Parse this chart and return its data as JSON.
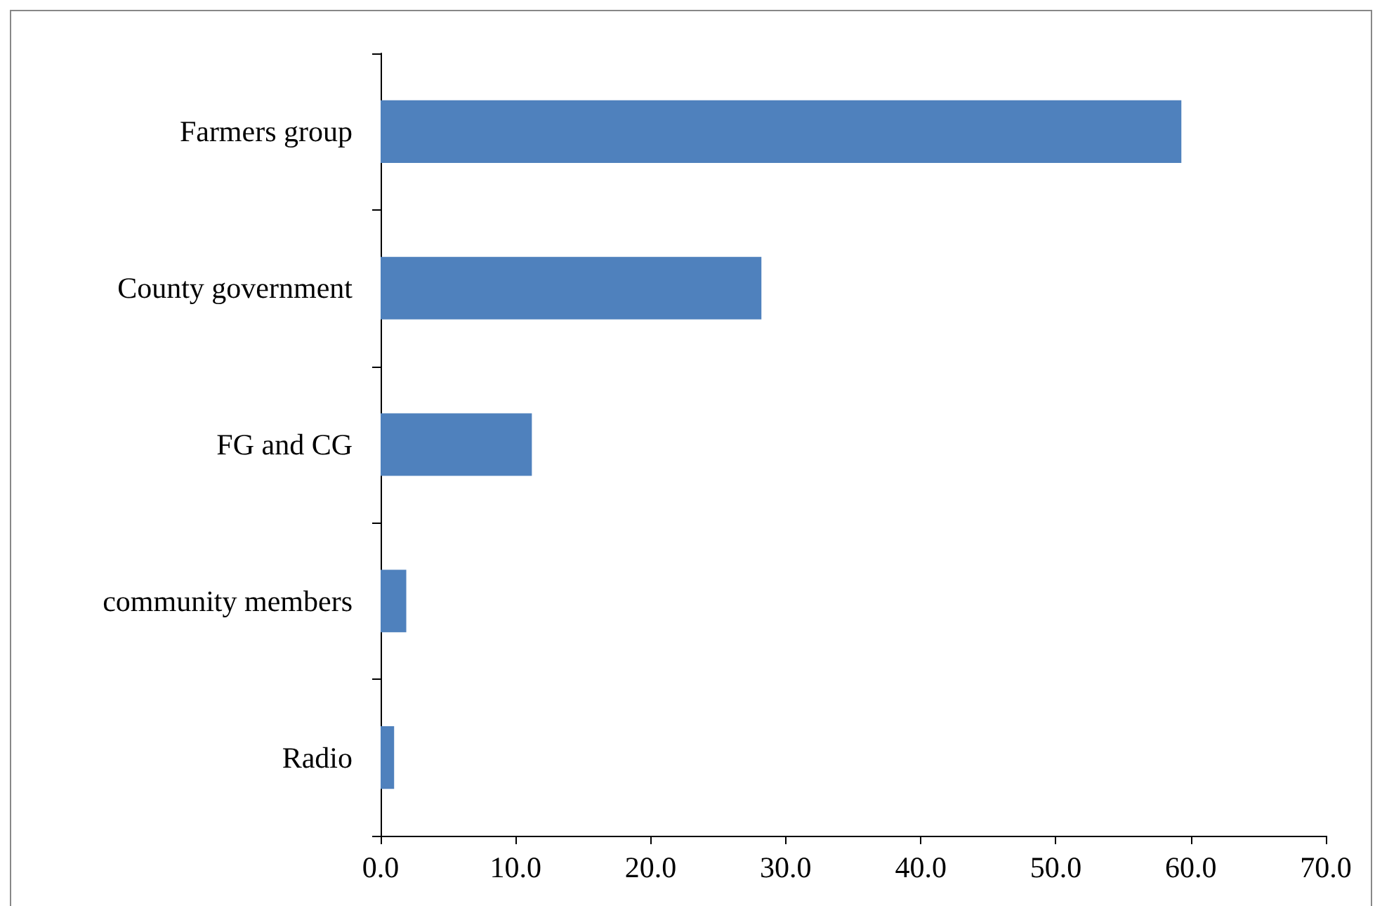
{
  "chart_data": {
    "type": "bar",
    "orientation": "horizontal",
    "categories": [
      "Farmers group",
      "County government",
      "FG and CG",
      "community members",
      "Radio"
    ],
    "values": [
      59.3,
      28.2,
      11.2,
      1.9,
      1.0
    ],
    "color": "#4f81bd",
    "xlim": [
      0,
      70
    ],
    "xticks": [
      {
        "value": 0,
        "label": "0.0"
      },
      {
        "value": 10,
        "label": "10.0"
      },
      {
        "value": 20,
        "label": "20.0"
      },
      {
        "value": 30,
        "label": "30.0"
      },
      {
        "value": 40,
        "label": "40.0"
      },
      {
        "value": 50,
        "label": "50.0"
      },
      {
        "value": 60,
        "label": "60.0"
      },
      {
        "value": 70,
        "label": "70.0"
      }
    ],
    "grid": false
  }
}
